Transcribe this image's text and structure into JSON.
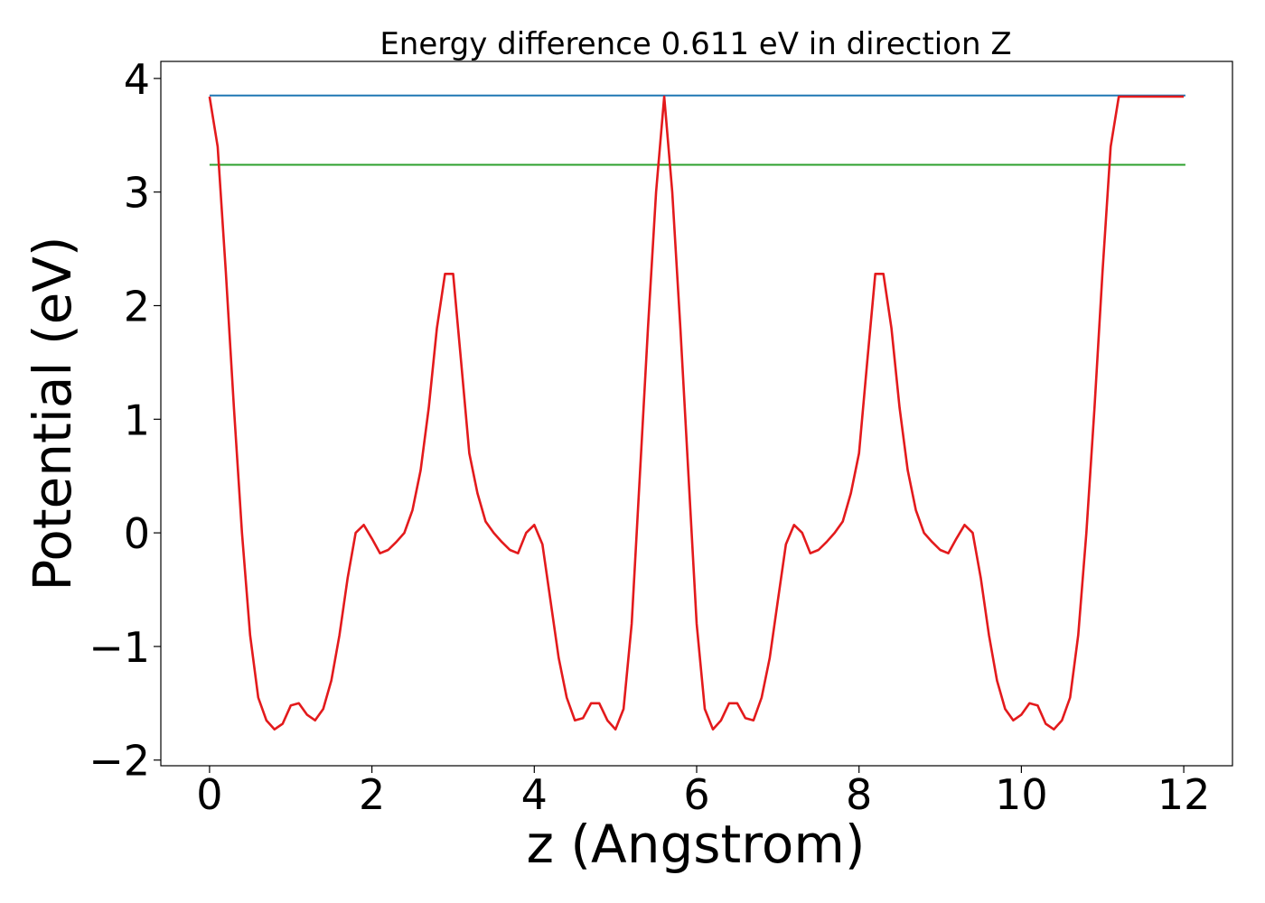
{
  "chart_data": {
    "type": "line",
    "title": "Energy difference 0.611 eV in direction Z",
    "xlabel": "z (Angstrom)",
    "ylabel": "Potential (eV)",
    "xlim": [
      -0.6,
      12.6
    ],
    "ylim": [
      -2.05,
      4.15
    ],
    "xticks": [
      0,
      2,
      4,
      6,
      8,
      10,
      12
    ],
    "xtick_labels": [
      "0",
      "2",
      "4",
      "6",
      "8",
      "10",
      "12"
    ],
    "yticks": [
      -2,
      -1,
      0,
      1,
      2,
      3,
      4
    ],
    "ytick_labels": [
      "−2",
      "−1",
      "0",
      "1",
      "2",
      "3",
      "4"
    ],
    "grid": false,
    "series": [
      {
        "color": "#1f77b4",
        "x": [
          0,
          12.02
        ],
        "y": [
          3.85,
          3.85
        ]
      },
      {
        "color": "#2ca02c",
        "x": [
          0,
          12.02
        ],
        "y": [
          3.24,
          3.24
        ]
      },
      {
        "color": "#e31a1c",
        "x": [
          0,
          0.1,
          0.2,
          0.3,
          0.4,
          0.5,
          0.6,
          0.7,
          0.8,
          0.9,
          1.0,
          1.1,
          1.2,
          1.3,
          1.4,
          1.5,
          1.6,
          1.7,
          1.8,
          1.9,
          2.0,
          2.1,
          2.2,
          2.3,
          2.4,
          2.5,
          2.6,
          2.7,
          2.8,
          2.9,
          3.0,
          3.1,
          3.2,
          3.3,
          3.4,
          3.5,
          3.6,
          3.7,
          3.8,
          3.9,
          4.0,
          4.1,
          4.2,
          4.3,
          4.4,
          4.5,
          4.6,
          4.7,
          4.8,
          4.9,
          5.0,
          5.1,
          5.2,
          5.3,
          5.4,
          5.5,
          5.6,
          5.7,
          5.8,
          5.9,
          6.0,
          6.1,
          6.2,
          6.3,
          6.4,
          6.5,
          6.6,
          6.7,
          6.8,
          6.9,
          7.0,
          7.1,
          7.2,
          7.3,
          7.4,
          7.5,
          7.6,
          7.7,
          7.8,
          7.9,
          8.0,
          8.1,
          8.2,
          8.3,
          8.4,
          8.5,
          8.6,
          8.7,
          8.8,
          8.9,
          9.0,
          9.1,
          9.2,
          9.3,
          9.4,
          9.5,
          9.6,
          9.7,
          9.8,
          9.9,
          10.0,
          10.1,
          10.2,
          10.3,
          10.4,
          10.5,
          10.6,
          10.7,
          10.8,
          10.9,
          11.0,
          11.1,
          11.2,
          11.3,
          11.4,
          11.5,
          11.6,
          11.7,
          11.8,
          11.9,
          12.0
        ],
        "y": [
          3.84,
          3.4,
          2.3,
          1.1,
          0.0,
          -0.9,
          -1.45,
          -1.65,
          -1.73,
          -1.68,
          -1.52,
          -1.5,
          -1.6,
          -1.65,
          -1.55,
          -1.3,
          -0.9,
          -0.4,
          0.0,
          0.07,
          -0.05,
          -0.18,
          -0.15,
          -0.08,
          0.0,
          0.2,
          0.55,
          1.1,
          1.8,
          2.28,
          2.28,
          1.5,
          0.7,
          0.35,
          0.1,
          0.0,
          -0.08,
          -0.15,
          -0.18,
          0.0,
          0.07,
          -0.1,
          -0.6,
          -1.1,
          -1.45,
          -1.65,
          -1.63,
          -1.5,
          -1.5,
          -1.65,
          -1.73,
          -1.55,
          -0.8,
          0.5,
          1.8,
          3.0,
          3.84,
          3.0,
          1.8,
          0.5,
          -0.8,
          -1.55,
          -1.73,
          -1.65,
          -1.5,
          -1.5,
          -1.63,
          -1.65,
          -1.45,
          -1.1,
          -0.6,
          -0.1,
          0.07,
          0.0,
          -0.18,
          -0.15,
          -0.08,
          0.0,
          0.1,
          0.35,
          0.7,
          1.5,
          2.28,
          2.28,
          1.8,
          1.1,
          0.55,
          0.2,
          0.0,
          -0.08,
          -0.15,
          -0.18,
          -0.05,
          0.07,
          0.0,
          -0.4,
          -0.9,
          -1.3,
          -1.55,
          -1.65,
          -1.6,
          -1.5,
          -1.52,
          -1.68,
          -1.73,
          -1.65,
          -1.45,
          -0.9,
          0.0,
          1.1,
          2.3,
          3.4,
          3.84,
          3.84,
          3.84,
          3.84,
          3.84,
          3.84,
          3.84,
          3.84,
          3.84
        ]
      }
    ]
  }
}
